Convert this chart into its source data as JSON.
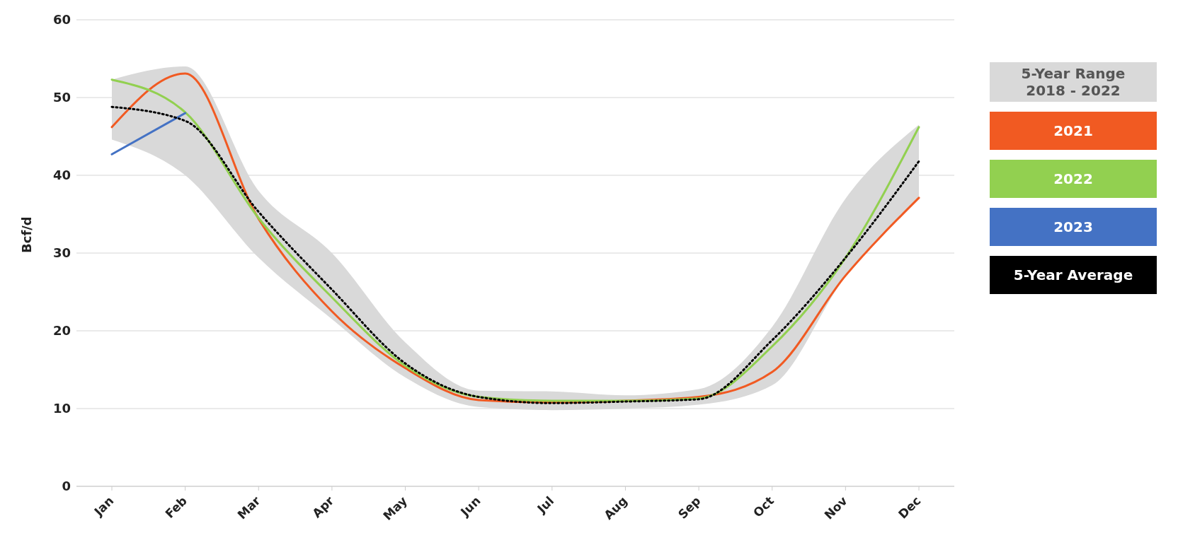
{
  "chart_data": {
    "type": "line",
    "ylabel": "Bcf/d",
    "categories": [
      "Jan",
      "Feb",
      "Mar",
      "Apr",
      "May",
      "Jun",
      "Jul",
      "Aug",
      "Sep",
      "Oct",
      "Nov",
      "Dec"
    ],
    "ylim": [
      0,
      60
    ],
    "yticks": [
      0,
      10,
      20,
      30,
      40,
      50,
      60
    ],
    "grid": "y",
    "legend": "right",
    "marker": "none",
    "annotations": [
      "5-Year Range 2018 - 2022"
    ],
    "series": [
      {
        "name": "2021",
        "color": "#f15a22",
        "values": [
          46.2,
          53.1,
          34.4,
          22.5,
          15.2,
          11.1,
          10.8,
          11,
          11.5,
          14.7,
          27.1,
          37.1
        ]
      },
      {
        "name": "2022",
        "color": "#92d050",
        "values": [
          52.3,
          48.1,
          34.5,
          24.3,
          15.5,
          11.5,
          11,
          11,
          11.3,
          18,
          29.4,
          46.2
        ]
      },
      {
        "name": "2023",
        "color": "#4472c4",
        "values": [
          42.7,
          48,
          null,
          null,
          null,
          null,
          null,
          null,
          null,
          null,
          null,
          null
        ]
      },
      {
        "name": "5-Year Average",
        "color": "#000000",
        "line_style": "dotted",
        "values": [
          48.8,
          47,
          35.3,
          25.3,
          15.8,
          11.5,
          10.7,
          10.9,
          11.2,
          18.8,
          29.4,
          41.8
        ],
        "lower": [
          44.6,
          40,
          29.4,
          21.5,
          14,
          10.2,
          9.8,
          10,
          10.5,
          13,
          27,
          37
        ],
        "upper": [
          52.3,
          54,
          38,
          30,
          18.5,
          12.3,
          12.2,
          11.7,
          12.5,
          20.5,
          37,
          46.5
        ]
      }
    ]
  }
}
